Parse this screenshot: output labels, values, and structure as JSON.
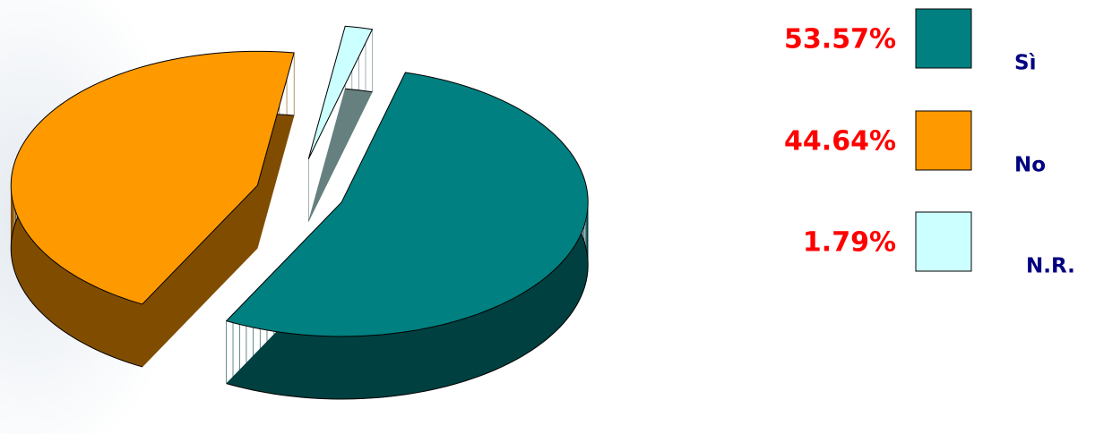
{
  "chart_data": {
    "type": "pie",
    "categories": [
      "Sì",
      "No",
      "N.R."
    ],
    "values": [
      53.57,
      44.64,
      1.79
    ],
    "value_labels": [
      "53.57%",
      "44.64%",
      "1.79%"
    ],
    "colors": [
      "#008080",
      "#ff9900",
      "#ccffff"
    ]
  }
}
